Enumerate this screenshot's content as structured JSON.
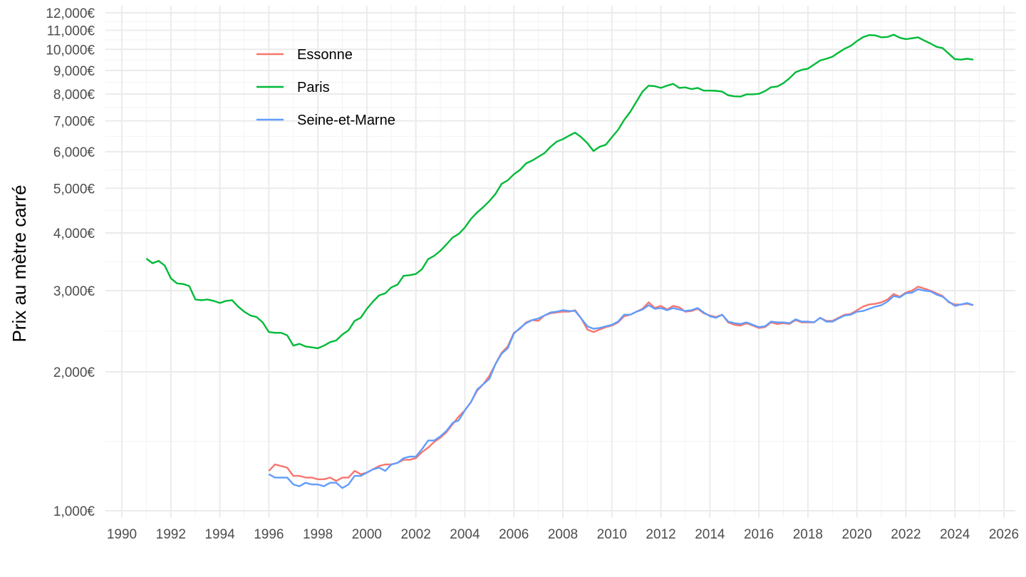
{
  "chart_data": {
    "type": "line",
    "title": "",
    "xlabel": "",
    "ylabel": "Prix au mètre carré",
    "y_scale": "log",
    "ylim": [
      1000,
      12000
    ],
    "xlim": [
      1989.8,
      2026.3
    ],
    "grid": true,
    "legend_position": "top-left",
    "x_ticks": [
      1990,
      1992,
      1994,
      1996,
      1998,
      2000,
      2002,
      2004,
      2006,
      2008,
      2010,
      2012,
      2014,
      2016,
      2018,
      2020,
      2022,
      2024,
      2026
    ],
    "y_ticks": [
      {
        "value": 1000,
        "label": "1,000€"
      },
      {
        "value": 2000,
        "label": "2,000€"
      },
      {
        "value": 3000,
        "label": "3,000€"
      },
      {
        "value": 4000,
        "label": "4,000€"
      },
      {
        "value": 5000,
        "label": "5,000€"
      },
      {
        "value": 6000,
        "label": "6,000€"
      },
      {
        "value": 7000,
        "label": "7,000€"
      },
      {
        "value": 8000,
        "label": "8,000€"
      },
      {
        "value": 9000,
        "label": "9,000€"
      },
      {
        "value": 10000,
        "label": "10,000€"
      },
      {
        "value": 11000,
        "label": "11,000€"
      },
      {
        "value": 12000,
        "label": "12,000€"
      }
    ],
    "series": [
      {
        "name": "Essonne",
        "color": "#F8766D",
        "x": [
          1996.0,
          1996.25,
          1996.5,
          1996.75,
          1997.0,
          1997.25,
          1997.5,
          1997.75,
          1998.0,
          1998.25,
          1998.5,
          1998.75,
          1999.0,
          1999.25,
          1999.5,
          1999.75,
          2000.0,
          2000.25,
          2000.5,
          2000.75,
          2001.0,
          2001.25,
          2001.5,
          2001.75,
          2002.0,
          2002.25,
          2002.5,
          2002.75,
          2003.0,
          2003.25,
          2003.5,
          2003.75,
          2004.0,
          2004.25,
          2004.5,
          2004.75,
          2005.0,
          2005.25,
          2005.5,
          2005.75,
          2006.0,
          2006.25,
          2006.5,
          2006.75,
          2007.0,
          2007.25,
          2007.5,
          2007.75,
          2008.0,
          2008.25,
          2008.5,
          2008.75,
          2009.0,
          2009.25,
          2009.5,
          2009.75,
          2010.0,
          2010.25,
          2010.5,
          2010.75,
          2011.0,
          2011.25,
          2011.5,
          2011.75,
          2012.0,
          2012.25,
          2012.5,
          2012.75,
          2013.0,
          2013.25,
          2013.5,
          2013.75,
          2014.0,
          2014.25,
          2014.5,
          2014.75,
          2015.0,
          2015.25,
          2015.5,
          2015.75,
          2016.0,
          2016.25,
          2016.5,
          2016.75,
          2017.0,
          2017.25,
          2017.5,
          2017.75,
          2018.0,
          2018.25,
          2018.5,
          2018.75,
          2019.0,
          2019.25,
          2019.5,
          2019.75,
          2020.0,
          2020.25,
          2020.5,
          2020.75,
          2021.0,
          2021.25,
          2021.5,
          2021.75,
          2022.0,
          2022.25,
          2022.5,
          2022.75,
          2023.0,
          2023.25,
          2023.5,
          2023.75,
          2024.0,
          2024.25,
          2024.5,
          2024.75
        ],
        "values": [
          1220,
          1260,
          1250,
          1240,
          1190,
          1190,
          1180,
          1180,
          1170,
          1170,
          1180,
          1160,
          1180,
          1180,
          1220,
          1200,
          1210,
          1230,
          1250,
          1260,
          1260,
          1270,
          1290,
          1290,
          1300,
          1340,
          1370,
          1410,
          1440,
          1480,
          1540,
          1600,
          1650,
          1720,
          1820,
          1880,
          1960,
          2080,
          2200,
          2270,
          2430,
          2480,
          2560,
          2590,
          2580,
          2650,
          2680,
          2690,
          2700,
          2700,
          2720,
          2610,
          2470,
          2440,
          2470,
          2500,
          2520,
          2560,
          2640,
          2660,
          2700,
          2740,
          2830,
          2750,
          2780,
          2730,
          2780,
          2760,
          2700,
          2710,
          2740,
          2680,
          2650,
          2630,
          2660,
          2560,
          2530,
          2520,
          2550,
          2520,
          2490,
          2500,
          2560,
          2540,
          2550,
          2540,
          2590,
          2560,
          2560,
          2560,
          2620,
          2580,
          2580,
          2620,
          2660,
          2670,
          2720,
          2770,
          2800,
          2810,
          2830,
          2870,
          2950,
          2910,
          2970,
          3000,
          3060,
          3030,
          3000,
          2960,
          2920,
          2830,
          2800,
          2800,
          2810,
          2790
        ]
      },
      {
        "name": "Paris",
        "color": "#00BA38",
        "x": [
          1991.0,
          1991.25,
          1991.5,
          1991.75,
          1992.0,
          1992.25,
          1992.5,
          1992.75,
          1993.0,
          1993.25,
          1993.5,
          1993.75,
          1994.0,
          1994.25,
          1994.5,
          1994.75,
          1995.0,
          1995.25,
          1995.5,
          1995.75,
          1996.0,
          1996.25,
          1996.5,
          1996.75,
          1997.0,
          1997.25,
          1997.5,
          1997.75,
          1998.0,
          1998.25,
          1998.5,
          1998.75,
          1999.0,
          1999.25,
          1999.5,
          1999.75,
          2000.0,
          2000.25,
          2000.5,
          2000.75,
          2001.0,
          2001.25,
          2001.5,
          2001.75,
          2002.0,
          2002.25,
          2002.5,
          2002.75,
          2003.0,
          2003.25,
          2003.5,
          2003.75,
          2004.0,
          2004.25,
          2004.5,
          2004.75,
          2005.0,
          2005.25,
          2005.5,
          2005.75,
          2006.0,
          2006.25,
          2006.5,
          2006.75,
          2007.0,
          2007.25,
          2007.5,
          2007.75,
          2008.0,
          2008.25,
          2008.5,
          2008.75,
          2009.0,
          2009.25,
          2009.5,
          2009.75,
          2010.0,
          2010.25,
          2010.5,
          2010.75,
          2011.0,
          2011.25,
          2011.5,
          2011.75,
          2012.0,
          2012.25,
          2012.5,
          2012.75,
          2013.0,
          2013.25,
          2013.5,
          2013.75,
          2014.0,
          2014.25,
          2014.5,
          2014.75,
          2015.0,
          2015.25,
          2015.5,
          2015.75,
          2016.0,
          2016.25,
          2016.5,
          2016.75,
          2017.0,
          2017.25,
          2017.5,
          2017.75,
          2018.0,
          2018.25,
          2018.5,
          2018.75,
          2019.0,
          2019.25,
          2019.5,
          2019.75,
          2020.0,
          2020.25,
          2020.5,
          2020.75,
          2021.0,
          2021.25,
          2021.5,
          2021.75,
          2022.0,
          2022.25,
          2022.5,
          2022.75,
          2023.0,
          2023.25,
          2023.5,
          2023.75,
          2024.0,
          2024.25,
          2024.5,
          2024.75
        ],
        "values": [
          3520,
          3440,
          3480,
          3400,
          3190,
          3110,
          3100,
          3070,
          2870,
          2860,
          2870,
          2850,
          2820,
          2850,
          2860,
          2770,
          2700,
          2650,
          2630,
          2560,
          2440,
          2430,
          2430,
          2400,
          2280,
          2300,
          2270,
          2260,
          2250,
          2280,
          2320,
          2340,
          2410,
          2460,
          2580,
          2620,
          2740,
          2840,
          2930,
          2960,
          3050,
          3090,
          3230,
          3240,
          3260,
          3340,
          3510,
          3570,
          3660,
          3780,
          3910,
          3980,
          4110,
          4290,
          4430,
          4550,
          4690,
          4860,
          5110,
          5200,
          5360,
          5480,
          5660,
          5740,
          5850,
          5960,
          6150,
          6310,
          6390,
          6500,
          6600,
          6450,
          6260,
          6020,
          6150,
          6210,
          6450,
          6690,
          7030,
          7320,
          7700,
          8100,
          8340,
          8320,
          8250,
          8340,
          8420,
          8250,
          8270,
          8200,
          8250,
          8140,
          8140,
          8130,
          8100,
          7950,
          7910,
          7900,
          7990,
          7990,
          8010,
          8120,
          8280,
          8310,
          8450,
          8660,
          8920,
          9030,
          9080,
          9270,
          9460,
          9540,
          9640,
          9840,
          10030,
          10180,
          10420,
          10630,
          10740,
          10720,
          10620,
          10640,
          10760,
          10600,
          10520,
          10570,
          10620,
          10450,
          10300,
          10130,
          10060,
          9790,
          9520,
          9500,
          9540,
          9500
        ]
      },
      {
        "name": "Seine-et-Marne",
        "color": "#619CFF",
        "x": [
          1996.0,
          1996.25,
          1996.5,
          1996.75,
          1997.0,
          1997.25,
          1997.5,
          1997.75,
          1998.0,
          1998.25,
          1998.5,
          1998.75,
          1999.0,
          1999.25,
          1999.5,
          1999.75,
          2000.0,
          2000.25,
          2000.5,
          2000.75,
          2001.0,
          2001.25,
          2001.5,
          2001.75,
          2002.0,
          2002.25,
          2002.5,
          2002.75,
          2003.0,
          2003.25,
          2003.5,
          2003.75,
          2004.0,
          2004.25,
          2004.5,
          2004.75,
          2005.0,
          2005.25,
          2005.5,
          2005.75,
          2006.0,
          2006.25,
          2006.5,
          2006.75,
          2007.0,
          2007.25,
          2007.5,
          2007.75,
          2008.0,
          2008.25,
          2008.5,
          2008.75,
          2009.0,
          2009.25,
          2009.5,
          2009.75,
          2010.0,
          2010.25,
          2010.5,
          2010.75,
          2011.0,
          2011.25,
          2011.5,
          2011.75,
          2012.0,
          2012.25,
          2012.5,
          2012.75,
          2013.0,
          2013.25,
          2013.5,
          2013.75,
          2014.0,
          2014.25,
          2014.5,
          2014.75,
          2015.0,
          2015.25,
          2015.5,
          2015.75,
          2016.0,
          2016.25,
          2016.5,
          2016.75,
          2017.0,
          2017.25,
          2017.5,
          2017.75,
          2018.0,
          2018.25,
          2018.5,
          2018.75,
          2019.0,
          2019.25,
          2019.5,
          2019.75,
          2020.0,
          2020.25,
          2020.5,
          2020.75,
          2021.0,
          2021.25,
          2021.5,
          2021.75,
          2022.0,
          2022.25,
          2022.5,
          2022.75,
          2023.0,
          2023.25,
          2023.5,
          2023.75,
          2024.0,
          2024.25,
          2024.5,
          2024.75
        ],
        "values": [
          1200,
          1180,
          1180,
          1180,
          1140,
          1130,
          1150,
          1140,
          1140,
          1130,
          1150,
          1150,
          1120,
          1140,
          1190,
          1190,
          1210,
          1230,
          1240,
          1220,
          1260,
          1270,
          1300,
          1310,
          1310,
          1360,
          1420,
          1420,
          1450,
          1490,
          1550,
          1570,
          1650,
          1720,
          1830,
          1880,
          1930,
          2080,
          2190,
          2250,
          2420,
          2490,
          2550,
          2590,
          2610,
          2650,
          2690,
          2700,
          2720,
          2710,
          2710,
          2610,
          2510,
          2480,
          2490,
          2510,
          2530,
          2570,
          2660,
          2660,
          2700,
          2730,
          2790,
          2740,
          2750,
          2720,
          2750,
          2730,
          2710,
          2720,
          2750,
          2690,
          2640,
          2620,
          2660,
          2570,
          2550,
          2540,
          2560,
          2530,
          2500,
          2510,
          2570,
          2560,
          2560,
          2550,
          2600,
          2570,
          2570,
          2560,
          2620,
          2570,
          2570,
          2610,
          2650,
          2660,
          2700,
          2710,
          2740,
          2770,
          2790,
          2840,
          2920,
          2900,
          2960,
          2970,
          3020,
          3000,
          2990,
          2940,
          2910,
          2840,
          2780,
          2800,
          2820,
          2790
        ]
      }
    ]
  }
}
